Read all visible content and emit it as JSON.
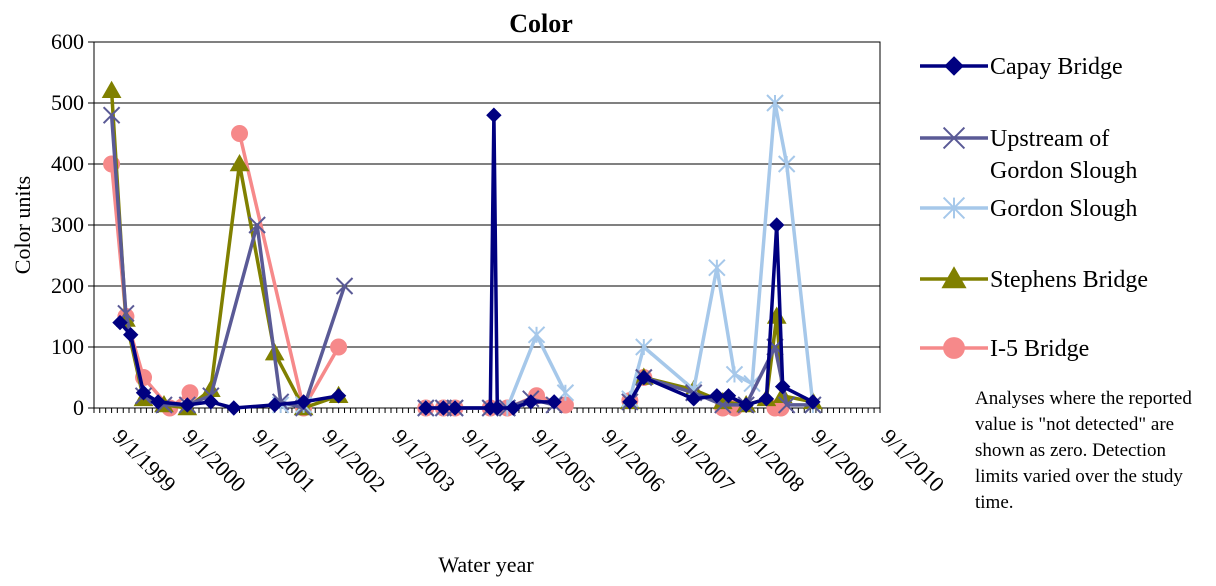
{
  "chart_data": {
    "type": "line",
    "title": "Color",
    "ylabel": "Color units",
    "xlabel": "Water year",
    "ylim": [
      0,
      600
    ],
    "yticks": [
      0,
      100,
      200,
      300,
      400,
      500,
      600
    ],
    "x_ticks": [
      "9/1/1999",
      "9/1/2000",
      "9/1/2001",
      "9/1/2002",
      "9/1/2003",
      "9/1/2004",
      "9/1/2005",
      "9/1/2006",
      "9/1/2007",
      "9/1/2008",
      "9/1/2009",
      "9/1/2010"
    ],
    "xlim": [
      "1999-06-01",
      "2010-09-01"
    ],
    "grid": "horizontal",
    "legend_position": "right",
    "series": [
      {
        "name": "Capay Bridge",
        "color": "#000080",
        "marker": "diamond",
        "segments": [
          [
            [
              "1999-10-15",
              140
            ],
            [
              "1999-12-10",
              120
            ],
            [
              "2000-02-15",
              25
            ],
            [
              "2000-05-01",
              10
            ],
            [
              "2000-10-01",
              5
            ],
            [
              "2001-02-01",
              10
            ],
            [
              "2001-06-01",
              0
            ],
            [
              "2002-01-01",
              5
            ],
            [
              "2002-06-01",
              10
            ],
            [
              "2002-12-01",
              20
            ]
          ],
          [
            [
              "2004-03-01",
              0
            ],
            [
              "2004-06-01",
              0
            ],
            [
              "2004-08-01",
              0
            ],
            [
              "2005-02-01",
              0
            ],
            [
              "2005-02-20",
              480
            ],
            [
              "2005-03-10",
              0
            ],
            [
              "2005-06-01",
              0
            ],
            [
              "2005-09-01",
              10
            ],
            [
              "2006-01-01",
              10
            ]
          ],
          [
            [
              "2007-02-01",
              10
            ],
            [
              "2007-04-15",
              50
            ],
            [
              "2008-01-01",
              15
            ],
            [
              "2008-05-01",
              20
            ],
            [
              "2008-07-01",
              20
            ],
            [
              "2008-10-01",
              5
            ],
            [
              "2009-01-15",
              15
            ],
            [
              "2009-03-10",
              300
            ],
            [
              "2009-04-10",
              35
            ],
            [
              "2009-09-15",
              10
            ]
          ]
        ]
      },
      {
        "name": "Upstream of Gordon Slough",
        "color": "#5A5A96",
        "marker": "x",
        "segments": [
          [
            [
              "1999-09-01",
              480
            ],
            [
              "1999-11-15",
              155
            ],
            [
              "2000-02-15",
              20
            ],
            [
              "2000-06-01",
              5
            ],
            [
              "2000-10-01",
              5
            ],
            [
              "2001-02-01",
              20
            ],
            [
              "2001-10-01",
              300
            ],
            [
              "2002-02-01",
              10
            ],
            [
              "2002-06-01",
              0
            ],
            [
              "2003-01-01",
              200
            ]
          ],
          [
            [
              "2004-03-01",
              0
            ],
            [
              "2004-06-01",
              0
            ],
            [
              "2004-08-01",
              0
            ],
            [
              "2005-02-01",
              0
            ],
            [
              "2005-05-01",
              0
            ],
            [
              "2005-09-01",
              15
            ],
            [
              "2006-01-01",
              5
            ]
          ],
          [
            [
              "2007-02-01",
              10
            ],
            [
              "2007-04-15",
              50
            ],
            [
              "2008-01-01",
              25
            ],
            [
              "2008-06-01",
              5
            ],
            [
              "2008-10-01",
              5
            ],
            [
              "2009-03-01",
              100
            ],
            [
              "2009-05-01",
              5
            ],
            [
              "2009-09-15",
              5
            ]
          ]
        ]
      },
      {
        "name": "Gordon Slough",
        "color": "#A6C8EA",
        "marker": "asterisk",
        "segments": [
          [
            [
              "2002-02-01",
              5
            ],
            [
              "2002-06-01",
              5
            ]
          ],
          [
            [
              "2004-03-01",
              0
            ],
            [
              "2004-06-01",
              0
            ],
            [
              "2004-08-01",
              0
            ],
            [
              "2005-02-01",
              0
            ],
            [
              "2005-05-01",
              0
            ],
            [
              "2005-10-01",
              120
            ],
            [
              "2006-03-01",
              25
            ]
          ],
          [
            [
              "2007-02-01",
              15
            ],
            [
              "2007-04-15",
              100
            ],
            [
              "2008-01-01",
              30
            ],
            [
              "2008-05-01",
              230
            ],
            [
              "2008-08-01",
              55
            ],
            [
              "2008-11-01",
              40
            ],
            [
              "2009-03-01",
              500
            ],
            [
              "2009-05-01",
              400
            ],
            [
              "2009-09-15",
              5
            ]
          ]
        ]
      },
      {
        "name": "Stephens Bridge",
        "color": "#808000",
        "marker": "triangle",
        "segments": [
          [
            [
              "1999-09-01",
              520
            ],
            [
              "1999-11-15",
              145
            ],
            [
              "2000-02-15",
              15
            ],
            [
              "2000-06-01",
              5
            ],
            [
              "2000-10-01",
              0
            ],
            [
              "2001-02-01",
              30
            ],
            [
              "2001-07-01",
              400
            ],
            [
              "2002-01-01",
              90
            ],
            [
              "2002-06-01",
              0
            ],
            [
              "2002-12-01",
              20
            ]
          ],
          [
            [
              "2007-02-01",
              10
            ],
            [
              "2007-04-15",
              50
            ],
            [
              "2008-01-01",
              30
            ],
            [
              "2008-06-01",
              10
            ],
            [
              "2008-10-01",
              5
            ],
            [
              "2009-01-15",
              15
            ],
            [
              "2009-03-10",
              150
            ],
            [
              "2009-04-10",
              20
            ],
            [
              "2009-09-15",
              10
            ]
          ]
        ]
      },
      {
        "name": "I-5 Bridge",
        "color": "#F6898A",
        "marker": "circle",
        "segments": [
          [
            [
              "1999-09-01",
              400
            ],
            [
              "1999-11-15",
              150
            ],
            [
              "2000-02-15",
              50
            ],
            [
              "2000-07-01",
              0
            ],
            [
              "2000-10-15",
              25
            ]
          ],
          [
            [
              "2001-07-01",
              450
            ],
            [
              "2002-06-01",
              0
            ],
            [
              "2002-12-01",
              100
            ]
          ],
          [
            [
              "2004-03-01",
              0
            ],
            [
              "2004-06-01",
              0
            ],
            [
              "2004-08-01",
              0
            ],
            [
              "2005-02-01",
              0
            ],
            [
              "2005-05-01",
              0
            ],
            [
              "2005-10-01",
              20
            ],
            [
              "2006-03-01",
              5
            ]
          ],
          [
            [
              "2007-02-01",
              12
            ],
            [
              "2007-04-15",
              50
            ]
          ],
          [
            [
              "2008-06-01",
              0
            ],
            [
              "2008-08-01",
              0
            ]
          ],
          [
            [
              "2009-03-01",
              0
            ],
            [
              "2009-04-01",
              0
            ]
          ]
        ]
      }
    ],
    "note": "Analyses where the reported value is \"not detected\" are shown as zero.  Detection limits  varied over the study time."
  }
}
